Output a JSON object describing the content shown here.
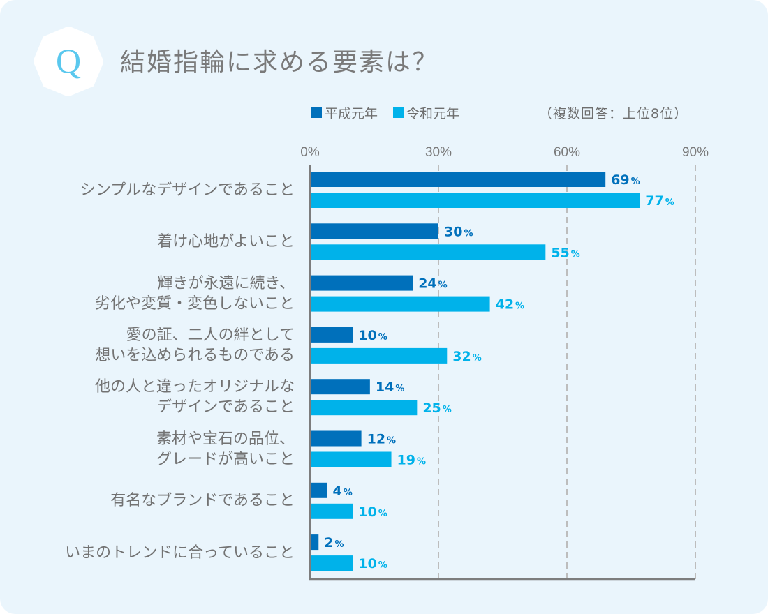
{
  "badge": {
    "letter": "Q"
  },
  "title": "結婚指輪に求める要素は？",
  "note": "（複数回答：上位8位）",
  "colors": {
    "heisei": "#0070bb",
    "reiwa": "#00b2ea",
    "text": "#727272",
    "background": "#eaf5fc"
  },
  "chart_data": {
    "type": "bar",
    "orientation": "horizontal",
    "title": "結婚指輪に求める要素は？",
    "subtitle": "（複数回答：上位8位）",
    "legend_position": "top",
    "xlim": [
      0,
      90
    ],
    "xticks": [
      "0%",
      "30%",
      "60%",
      "90%"
    ],
    "xtick_values": [
      0,
      30,
      60,
      90
    ],
    "grid": true,
    "categories": [
      "シンプルなデザインであること",
      "着け心地がよいこと",
      "輝きが永遠に続き、\n劣化や変質・変色しないこと",
      "愛の証、二人の絆として\n想いを込められるものである",
      "他の人と違ったオリジナルな\nデザインであること",
      "素材や宝石の品位、\nグレードが高いこと",
      "有名なブランドであること",
      "いまのトレンドに合っていること"
    ],
    "series": [
      {
        "name": "平成元年",
        "color": "#0070bb",
        "values": [
          69,
          30,
          24,
          10,
          14,
          12,
          4,
          2
        ]
      },
      {
        "name": "令和元年",
        "color": "#00b2ea",
        "values": [
          77,
          55,
          42,
          32,
          25,
          19,
          10,
          10
        ]
      }
    ],
    "value_suffix": "%"
  }
}
